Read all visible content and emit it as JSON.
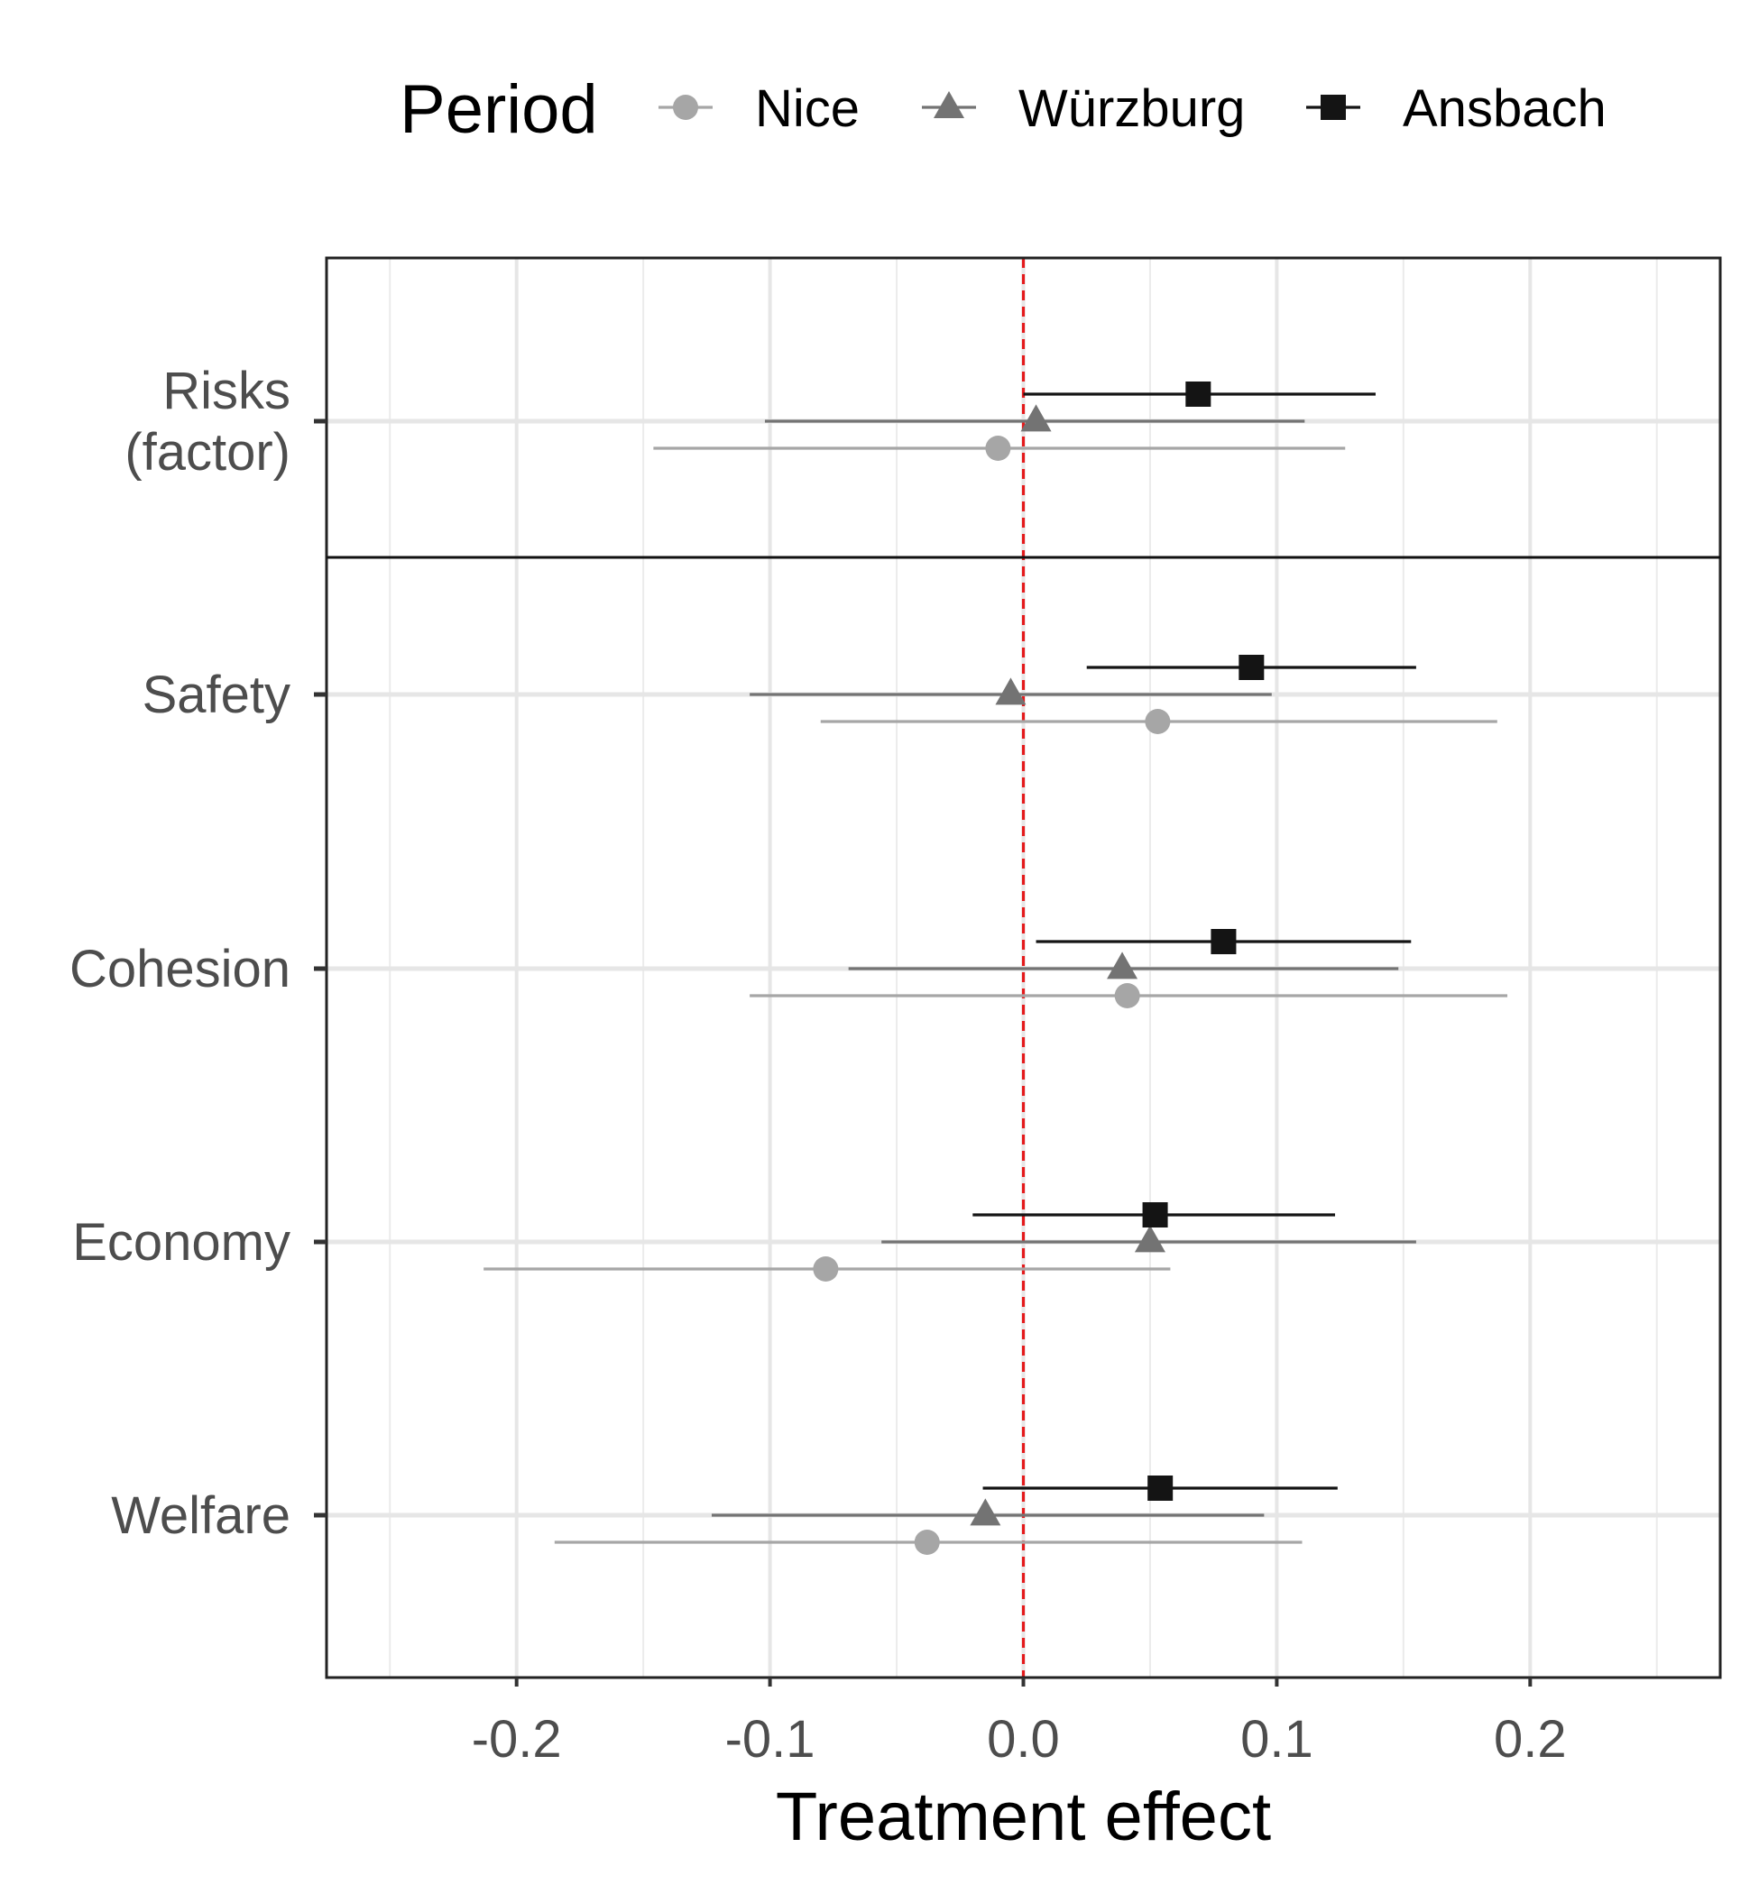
{
  "chart_data": {
    "type": "scatter",
    "subtype": "coefficient-plot-with-confidence-intervals",
    "title": "",
    "xlabel": "Treatment effect",
    "ylabel": "",
    "xlim": [
      -0.275,
      0.275
    ],
    "x_ticks": [
      -0.2,
      -0.1,
      0.0,
      0.1,
      0.2
    ],
    "x_tick_labels": [
      "-0.2",
      "-0.1",
      "0.0",
      "0.1",
      "0.2"
    ],
    "grid": true,
    "reference_line": {
      "x": 0,
      "style": "dashed",
      "color": "#e41a1c"
    },
    "legend": {
      "title": "Period",
      "position": "top"
    },
    "categories": [
      {
        "label_lines": [
          "Risks",
          "(factor)"
        ]
      },
      {
        "label_lines": [
          "Safety"
        ]
      },
      {
        "label_lines": [
          "Cohesion"
        ]
      },
      {
        "label_lines": [
          "Economy"
        ]
      },
      {
        "label_lines": [
          "Welfare"
        ]
      }
    ],
    "series": [
      {
        "name": "Nice",
        "marker": "circle",
        "color": "#a6a6a6",
        "estimates": [
          -0.01,
          0.053,
          0.041,
          -0.078,
          -0.038
        ],
        "lower": [
          -0.146,
          -0.08,
          -0.108,
          -0.213,
          -0.185
        ],
        "upper": [
          0.127,
          0.187,
          0.191,
          0.058,
          0.11
        ]
      },
      {
        "name": "Würzburg",
        "marker": "triangle",
        "color": "#737373",
        "estimates": [
          0.005,
          -0.005,
          0.039,
          0.05,
          -0.015
        ],
        "lower": [
          -0.102,
          -0.108,
          -0.069,
          -0.056,
          -0.123
        ],
        "upper": [
          0.111,
          0.098,
          0.148,
          0.155,
          0.095
        ]
      },
      {
        "name": "Ansbach",
        "marker": "square",
        "color": "#141414",
        "estimates": [
          0.069,
          0.09,
          0.079,
          0.052,
          0.054
        ],
        "lower": [
          0.0,
          0.025,
          0.005,
          -0.02,
          -0.016
        ],
        "upper": [
          0.139,
          0.155,
          0.153,
          0.123,
          0.124
        ]
      }
    ]
  }
}
